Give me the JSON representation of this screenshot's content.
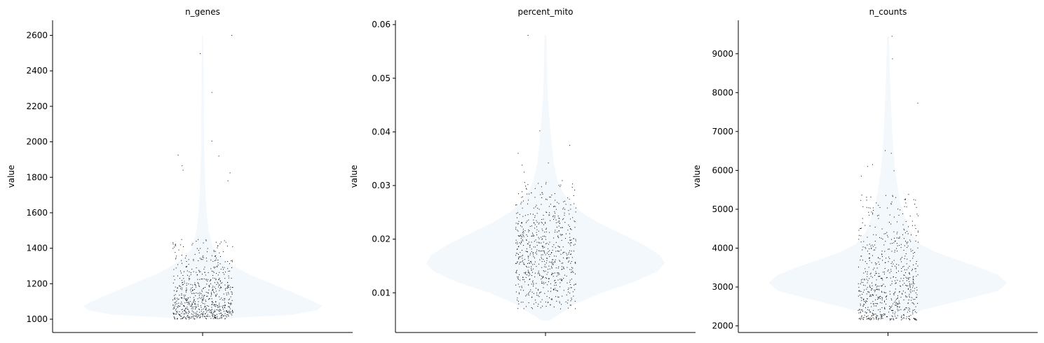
{
  "chart_data": [
    {
      "type": "violin",
      "title": "n_genes",
      "ylabel": "value",
      "ylim": [
        925,
        2685
      ],
      "yticks": [
        1000,
        1200,
        1400,
        1600,
        1800,
        2000,
        2200,
        2400,
        2600
      ],
      "violin_profile": [
        [
          1000,
          0.05
        ],
        [
          1025,
          0.75
        ],
        [
          1050,
          0.96
        ],
        [
          1075,
          1.0
        ],
        [
          1100,
          0.93
        ],
        [
          1150,
          0.76
        ],
        [
          1200,
          0.58
        ],
        [
          1250,
          0.4
        ],
        [
          1300,
          0.26
        ],
        [
          1350,
          0.15
        ],
        [
          1400,
          0.09
        ],
        [
          1500,
          0.05
        ],
        [
          1600,
          0.035
        ],
        [
          1700,
          0.025
        ],
        [
          1800,
          0.02
        ],
        [
          1900,
          0.015
        ],
        [
          2000,
          0.012
        ],
        [
          2200,
          0.01
        ],
        [
          2400,
          0.008
        ],
        [
          2600,
          0.004
        ]
      ],
      "points": {
        "count": 700,
        "min": 1002,
        "max": 2600,
        "core_range": [
          1000,
          1450
        ],
        "outliers": [
          2600,
          2497,
          2278,
          2004,
          1925,
          1920,
          1865,
          1840,
          1825,
          1780
        ]
      }
    },
    {
      "type": "violin",
      "title": "percent_mito",
      "ylabel": "value",
      "ylim": [
        0.0026,
        0.0608
      ],
      "yticks": [
        0.01,
        0.02,
        0.03,
        0.04,
        0.05,
        0.06
      ],
      "violin_profile": [
        [
          0.0048,
          0.03
        ],
        [
          0.008,
          0.26
        ],
        [
          0.01,
          0.47
        ],
        [
          0.012,
          0.74
        ],
        [
          0.014,
          0.94
        ],
        [
          0.0155,
          1.0
        ],
        [
          0.017,
          0.96
        ],
        [
          0.019,
          0.82
        ],
        [
          0.021,
          0.64
        ],
        [
          0.023,
          0.45
        ],
        [
          0.025,
          0.3
        ],
        [
          0.027,
          0.2
        ],
        [
          0.029,
          0.14
        ],
        [
          0.031,
          0.1
        ],
        [
          0.034,
          0.07
        ],
        [
          0.038,
          0.05
        ],
        [
          0.042,
          0.035
        ],
        [
          0.046,
          0.02
        ],
        [
          0.05,
          0.015
        ],
        [
          0.058,
          0.008
        ]
      ],
      "points": {
        "count": 700,
        "min": 0.0048,
        "max": 0.058,
        "core_range": [
          0.007,
          0.031
        ],
        "outliers": [
          0.058,
          0.0402,
          0.0375,
          0.036,
          0.0342,
          0.0338,
          0.0325
        ]
      }
    },
    {
      "type": "violin",
      "title": "n_counts",
      "ylabel": "value",
      "ylim": [
        1830,
        9860
      ],
      "yticks": [
        2000,
        3000,
        4000,
        5000,
        6000,
        7000,
        8000,
        9000
      ],
      "violin_profile": [
        [
          2150,
          0.02
        ],
        [
          2400,
          0.28
        ],
        [
          2700,
          0.67
        ],
        [
          2900,
          0.92
        ],
        [
          3100,
          1.0
        ],
        [
          3300,
          0.93
        ],
        [
          3500,
          0.77
        ],
        [
          3700,
          0.58
        ],
        [
          3900,
          0.4
        ],
        [
          4100,
          0.27
        ],
        [
          4400,
          0.19
        ],
        [
          4800,
          0.14
        ],
        [
          5200,
          0.1
        ],
        [
          5600,
          0.08
        ],
        [
          6000,
          0.06
        ],
        [
          6500,
          0.045
        ],
        [
          7000,
          0.035
        ],
        [
          7700,
          0.025
        ],
        [
          8500,
          0.015
        ],
        [
          9450,
          0.008
        ]
      ],
      "points": {
        "count": 700,
        "min": 2150,
        "max": 9450,
        "core_range": [
          2150,
          5400
        ],
        "outliers": [
          9450,
          8870,
          7730,
          6510,
          6440,
          6150,
          6100,
          5990,
          5850
        ]
      }
    }
  ]
}
